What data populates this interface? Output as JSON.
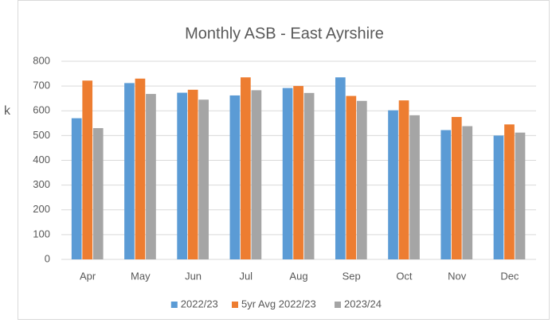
{
  "side_text": "k",
  "chart_data": {
    "type": "bar",
    "title": "Monthly ASB - East Ayrshire",
    "categories": [
      "Apr",
      "May",
      "Jun",
      "Jul",
      "Aug",
      "Sep",
      "Oct",
      "Nov",
      "Dec"
    ],
    "series": [
      {
        "name": "2022/23",
        "color": "#5b9bd5",
        "values": [
          570,
          712,
          673,
          662,
          692,
          735,
          602,
          522,
          500
        ]
      },
      {
        "name": "5yr Avg 2022/23",
        "color": "#ed7d31",
        "values": [
          722,
          730,
          685,
          735,
          700,
          660,
          642,
          575,
          545
        ]
      },
      {
        "name": "2023/24",
        "color": "#a5a5a5",
        "values": [
          530,
          668,
          645,
          683,
          672,
          640,
          582,
          538,
          512
        ]
      }
    ],
    "ylim": [
      0,
      800
    ],
    "yticks": [
      0,
      100,
      200,
      300,
      400,
      500,
      600,
      700,
      800
    ],
    "grid": true,
    "legend": "bottom"
  }
}
